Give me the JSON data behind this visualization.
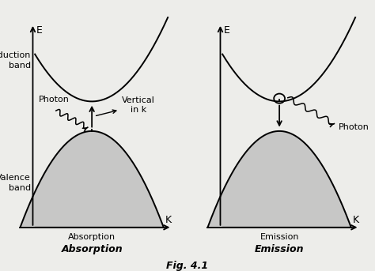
{
  "bg_color": "#ededea",
  "title": "Fig. 4.1",
  "left_label": "Absorption",
  "right_label": "Emission",
  "left_italic": "Absorption",
  "right_italic": "Emission",
  "e_label": "E",
  "k_label": "K",
  "conduction_band_label": "Conduction\nband",
  "valence_band_label": "Valence\nband",
  "photon_label": "Photon",
  "vertical_in_k_label": "Vertical\nin k",
  "vb_fill_color": "#b8b8b8",
  "axis_color": "#111111"
}
